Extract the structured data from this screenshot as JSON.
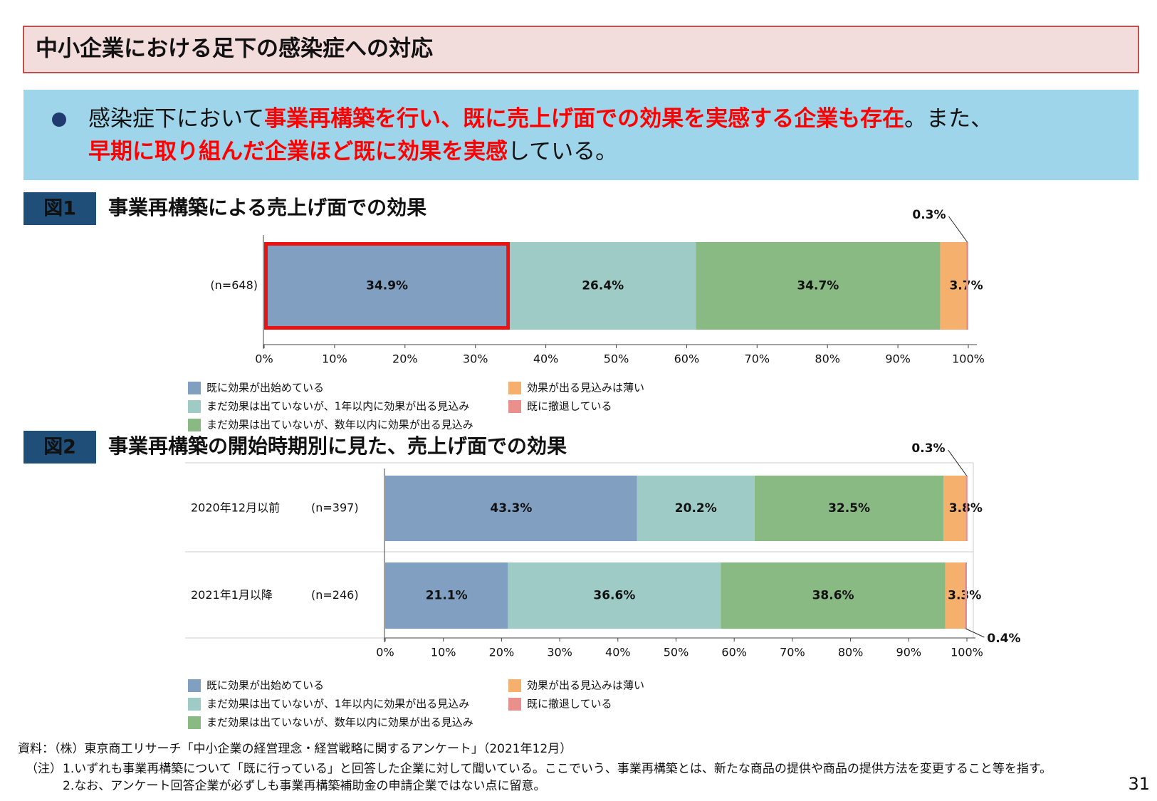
{
  "header": {
    "title": "中小企業における足下の感染症への対応"
  },
  "summary": {
    "lines": [
      [
        {
          "text": "感染症下において",
          "color": "#111111"
        },
        {
          "text": "事業再構築を行い、既に売上げ面での効果を実感する企業も存在",
          "color": "#ff0000"
        },
        {
          "text": "。また、",
          "color": "#111111"
        }
      ],
      [
        {
          "text": "早期に取り組んだ企業ほど既に効果を実感",
          "color": "#ff0000"
        },
        {
          "text": "している。",
          "color": "#111111"
        }
      ]
    ]
  },
  "chart_data": [
    {
      "type": "stacked-hbar",
      "figure_label": "図1",
      "title": "事業再構築による売上げ面での効果",
      "categories": [
        "(n=648)"
      ],
      "highlight_series": 0,
      "highlight_color": "#ee1111",
      "series": [
        {
          "name": "既に効果が出始めている",
          "color": "#819fc0",
          "values": [
            34.9
          ],
          "value_labels": [
            "34.9%"
          ]
        },
        {
          "name": "まだ効果は出ていないが、1年以内に効果が出る見込み",
          "color": "#9ecbc6",
          "values": [
            26.4
          ],
          "value_labels": [
            "26.4%"
          ]
        },
        {
          "name": "まだ効果は出ていないが、数年以内に効果が出る見込み",
          "color": "#8aba83",
          "values": [
            34.7
          ],
          "value_labels": [
            "34.7%"
          ]
        },
        {
          "name": "効果が出る見込みは薄い",
          "color": "#f4b06c",
          "values": [
            3.7
          ],
          "value_labels": [
            "3.7%"
          ]
        },
        {
          "name": "既に撤退している",
          "color": "#e9908c",
          "values": [
            0.3
          ],
          "value_labels": [
            "0.3%"
          ]
        }
      ],
      "xlim": [
        0,
        100
      ],
      "xticks": [
        {
          "value": 0,
          "label": "0%"
        },
        {
          "value": 10,
          "label": "10%"
        },
        {
          "value": 20,
          "label": "20%"
        },
        {
          "value": 30,
          "label": "30%"
        },
        {
          "value": 40,
          "label": "40%"
        },
        {
          "value": 50,
          "label": "50%"
        },
        {
          "value": 60,
          "label": "60%"
        },
        {
          "value": 70,
          "label": "70%"
        },
        {
          "value": 80,
          "label": "80%"
        },
        {
          "value": 90,
          "label": "90%"
        },
        {
          "value": 100,
          "label": "100%"
        }
      ]
    },
    {
      "type": "stacked-hbar",
      "figure_label": "図2",
      "title": "事業再構築の開始時期別に見た、売上げ面での効果",
      "categories": [
        "2020年12月以前",
        "2021年1月以降"
      ],
      "n_labels": [
        "(n=397)",
        "(n=246)"
      ],
      "series": [
        {
          "name": "既に効果が出始めている",
          "color": "#819fc0",
          "values": [
            43.3,
            21.1
          ],
          "value_labels": [
            "43.3%",
            "21.1%"
          ]
        },
        {
          "name": "まだ効果は出ていないが、1年以内に効果が出る見込み",
          "color": "#9ecbc6",
          "values": [
            20.2,
            36.6
          ],
          "value_labels": [
            "20.2%",
            "36.6%"
          ]
        },
        {
          "name": "まだ効果は出ていないが、数年以内に効果が出る見込み",
          "color": "#8aba83",
          "values": [
            32.5,
            38.6
          ],
          "value_labels": [
            "32.5%",
            "38.6%"
          ]
        },
        {
          "name": "効果が出る見込みは薄い",
          "color": "#f4b06c",
          "values": [
            3.8,
            3.3
          ],
          "value_labels": [
            "3.8%",
            "3.3%"
          ]
        },
        {
          "name": "既に撤退している",
          "color": "#e9908c",
          "values": [
            0.3,
            0.4
          ],
          "value_labels": [
            "0.3%",
            "0.4%"
          ]
        }
      ],
      "xlim": [
        0,
        100
      ],
      "xticks": [
        {
          "value": 0,
          "label": "0%"
        },
        {
          "value": 10,
          "label": "10%"
        },
        {
          "value": 20,
          "label": "20%"
        },
        {
          "value": 30,
          "label": "30%"
        },
        {
          "value": 40,
          "label": "40%"
        },
        {
          "value": 50,
          "label": "50%"
        },
        {
          "value": 60,
          "label": "60%"
        },
        {
          "value": 70,
          "label": "70%"
        },
        {
          "value": 80,
          "label": "80%"
        },
        {
          "value": 90,
          "label": "90%"
        },
        {
          "value": 100,
          "label": "100%"
        }
      ]
    }
  ],
  "footer": {
    "source": "資料：（株）東京商工リサーチ「中小企業の経営理念・経営戦略に関するアンケート」（2021年12月）",
    "notes_label": "（注）",
    "notes": [
      "1.いずれも事業再構築について「既に行っている」と回答した企業に対して聞いている。ここでいう、事業再構築とは、新たな商品の提供や商品の提供方法を変更すること等を指す。",
      "2.なお、アンケート回答企業が必ずしも事業再構築補助金の申請企業ではない点に留意。"
    ],
    "page_number": "31"
  }
}
